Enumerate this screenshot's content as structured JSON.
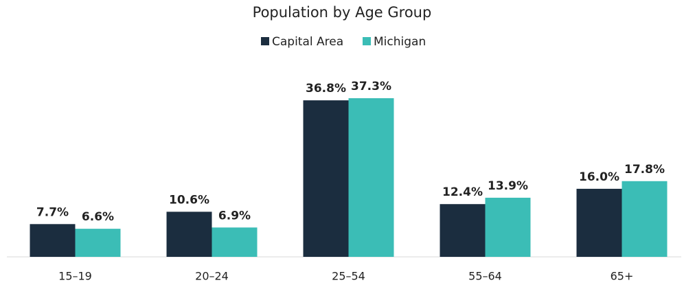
{
  "chart_data": {
    "type": "bar",
    "title": "Population by Age Group",
    "categories": [
      "15–19",
      "20–24",
      "25–54",
      "55–64",
      "65+"
    ],
    "series": [
      {
        "name": "Capital Area",
        "color": "#1b2d3f",
        "values": [
          7.7,
          10.6,
          36.8,
          12.4,
          16.0
        ],
        "value_labels": [
          "7.7%",
          "10.6%",
          "36.8%",
          "12.4%",
          "16.0%"
        ]
      },
      {
        "name": "Michigan",
        "color": "#3bbdb6",
        "values": [
          6.6,
          6.9,
          37.3,
          13.9,
          17.8
        ],
        "value_labels": [
          "6.6%",
          "6.9%",
          "37.3%",
          "13.9%",
          "17.8%"
        ]
      }
    ]
  }
}
